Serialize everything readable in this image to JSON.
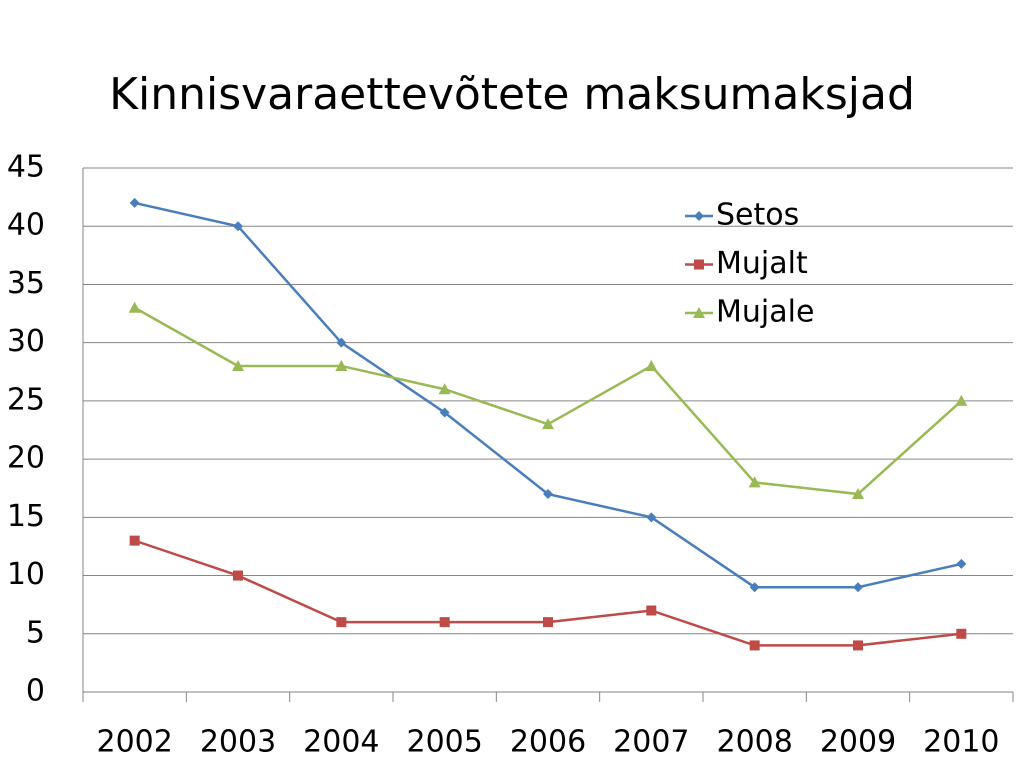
{
  "chart_data": {
    "type": "line",
    "title": "Kinnisvaraettevõtete maksumaksjad",
    "categories": [
      "2002",
      "2003",
      "2004",
      "2005",
      "2006",
      "2007",
      "2008",
      "2009",
      "2010"
    ],
    "series": [
      {
        "name": "Setos",
        "color": "#4a7ebb",
        "marker": "diamond",
        "values": [
          42,
          40,
          30,
          24,
          17,
          15,
          9,
          9,
          11
        ]
      },
      {
        "name": "Mujalt",
        "color": "#be4b48",
        "marker": "square",
        "values": [
          13,
          10,
          6,
          6,
          6,
          7,
          4,
          4,
          5
        ]
      },
      {
        "name": "Mujale",
        "color": "#98b954",
        "marker": "triangle",
        "values": [
          33,
          28,
          28,
          26,
          23,
          28,
          18,
          17,
          25
        ]
      }
    ],
    "ylim": [
      0,
      45
    ],
    "yticks": [
      0,
      5,
      10,
      15,
      20,
      25,
      30,
      35,
      40,
      45
    ],
    "grid": true,
    "legend": "upper right"
  }
}
